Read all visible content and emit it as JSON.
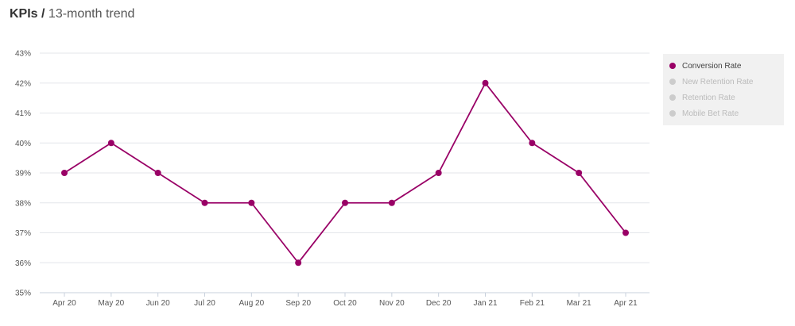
{
  "header": {
    "title_bold": "KPIs /",
    "title_rest": "13-month trend"
  },
  "chart_data": {
    "type": "line",
    "categories": [
      "Apr 20",
      "May 20",
      "Jun 20",
      "Jul 20",
      "Aug 20",
      "Sep 20",
      "Oct 20",
      "Nov 20",
      "Dec 20",
      "Jan 21",
      "Feb 21",
      "Mar 21",
      "Apr 21"
    ],
    "series": [
      {
        "name": "Conversion Rate",
        "values": [
          39,
          40,
          39,
          38,
          38,
          36,
          38,
          38,
          39,
          42,
          40,
          39,
          37
        ],
        "color": "#990066",
        "active": true
      }
    ],
    "ylim": [
      35,
      43
    ],
    "yticks": [
      "35%",
      "36%",
      "37%",
      "38%",
      "39%",
      "40%",
      "41%",
      "42%",
      "43%"
    ],
    "grid": true,
    "legend_position": "right",
    "legend": [
      {
        "label": "Conversion Rate",
        "color": "#990066",
        "active": true
      },
      {
        "label": "New Retention Rate",
        "color": "#cccccc",
        "active": false
      },
      {
        "label": "Retention Rate",
        "color": "#cccccc",
        "active": false
      },
      {
        "label": "Mobile Bet Rate",
        "color": "#cccccc",
        "active": false
      }
    ]
  }
}
